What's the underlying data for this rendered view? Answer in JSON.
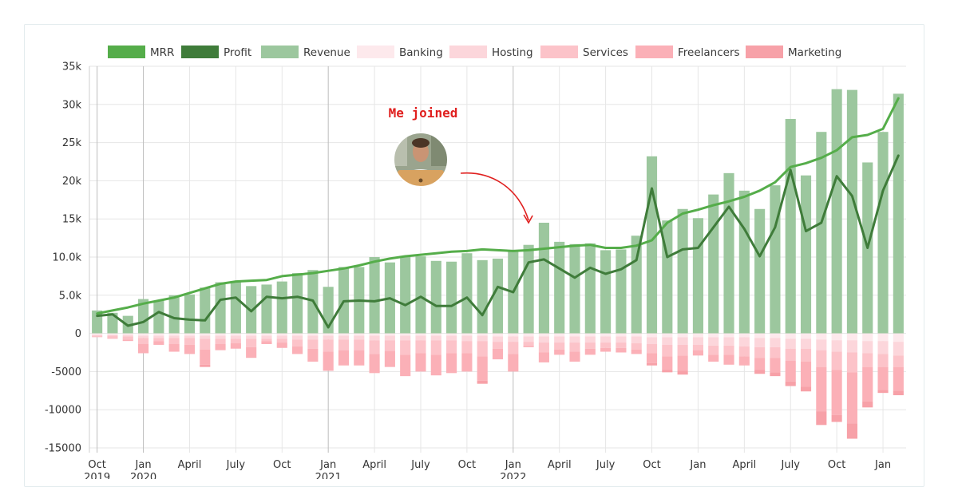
{
  "chart_data": {
    "type": "bar",
    "title": "",
    "xlabel": "",
    "ylabel": "",
    "ylim": [
      -15000,
      35000
    ],
    "y_ticks": [
      35000,
      30000,
      25000,
      20000,
      15000,
      10000,
      5000,
      0,
      -5000,
      -10000,
      -15000
    ],
    "y_tick_labels": [
      "35k",
      "30k",
      "25k",
      "20k",
      "15k",
      "10.0k",
      "5.0k",
      "0",
      "-5000",
      "-10000",
      "-15000"
    ],
    "grid": true,
    "legend_position": "top",
    "x": [
      "2019-10",
      "2019-11",
      "2019-12",
      "2020-01",
      "2020-02",
      "2020-03",
      "2020-04",
      "2020-05",
      "2020-06",
      "2020-07",
      "2020-08",
      "2020-09",
      "2020-10",
      "2020-11",
      "2020-12",
      "2021-01",
      "2021-02",
      "2021-03",
      "2021-04",
      "2021-05",
      "2021-06",
      "2021-07",
      "2021-08",
      "2021-09",
      "2021-10",
      "2021-11",
      "2021-12",
      "2022-01",
      "2022-02",
      "2022-03",
      "2022-04",
      "2022-05",
      "2022-06",
      "2022-07",
      "2022-08",
      "2022-09",
      "2022-10",
      "2022-11",
      "2022-12",
      "2023-01",
      "2023-02",
      "2023-03",
      "2023-04",
      "2023-05",
      "2023-06",
      "2023-07",
      "2023-08",
      "2023-09",
      "2023-10",
      "2023-11",
      "2023-12",
      "2024-01",
      "2024-02"
    ],
    "x_tick_labels": [
      {
        "index": 0,
        "month": "Oct",
        "year": "2019"
      },
      {
        "index": 3,
        "month": "Jan",
        "year": "2020"
      },
      {
        "index": 6,
        "month": "April",
        "year": ""
      },
      {
        "index": 9,
        "month": "July",
        "year": ""
      },
      {
        "index": 12,
        "month": "Oct",
        "year": ""
      },
      {
        "index": 15,
        "month": "Jan",
        "year": "2021"
      },
      {
        "index": 18,
        "month": "April",
        "year": ""
      },
      {
        "index": 21,
        "month": "July",
        "year": ""
      },
      {
        "index": 24,
        "month": "Oct",
        "year": ""
      },
      {
        "index": 27,
        "month": "Jan",
        "year": "2022"
      },
      {
        "index": 30,
        "month": "April",
        "year": ""
      },
      {
        "index": 33,
        "month": "July",
        "year": ""
      },
      {
        "index": 36,
        "month": "Oct",
        "year": ""
      },
      {
        "index": 39,
        "month": "Jan",
        "year": ""
      },
      {
        "index": 42,
        "month": "April",
        "year": ""
      },
      {
        "index": 45,
        "month": "July",
        "year": ""
      },
      {
        "index": 48,
        "month": "Oct",
        "year": ""
      },
      {
        "index": 51,
        "month": "Jan",
        "year": ""
      }
    ],
    "series": [
      {
        "name": "MRR",
        "kind": "line",
        "color": "#55ad4a",
        "values": [
          2600,
          3000,
          3400,
          3900,
          4300,
          4700,
          5300,
          5900,
          6500,
          6800,
          6900,
          7000,
          7500,
          7700,
          7900,
          8200,
          8500,
          8900,
          9400,
          9800,
          10100,
          10300,
          10500,
          10700,
          10800,
          11000,
          10900,
          10800,
          10900,
          11100,
          11300,
          11500,
          11600,
          11200,
          11200,
          11500,
          12200,
          14500,
          15700,
          16200,
          16800,
          17300,
          17900,
          18700,
          19800,
          21800,
          22300,
          23000,
          24000,
          25700,
          26000,
          26800,
          30800
        ]
      },
      {
        "name": "Profit",
        "kind": "line",
        "color": "#3f7c3a",
        "values": [
          2300,
          2500,
          1000,
          1500,
          2800,
          2000,
          1800,
          1700,
          4400,
          4700,
          2900,
          4800,
          4600,
          4800,
          4300,
          800,
          4200,
          4300,
          4200,
          4600,
          3700,
          4800,
          3600,
          3600,
          4700,
          2400,
          6100,
          5400,
          9300,
          9700,
          8500,
          7300,
          8600,
          7800,
          8400,
          9600,
          19000,
          10000,
          11000,
          11200,
          13900,
          16600,
          13700,
          10100,
          13900,
          21400,
          13400,
          14500,
          20600,
          18000,
          11200,
          18700,
          23300
        ]
      },
      {
        "name": "Revenue",
        "kind": "bar",
        "color": "#9cc79e",
        "values": [
          3000,
          2700,
          2300,
          4500,
          4300,
          5000,
          5100,
          6000,
          6700,
          6700,
          6200,
          6400,
          6800,
          7900,
          8300,
          6100,
          8700,
          8700,
          10000,
          9300,
          10100,
          10100,
          9500,
          9400,
          10500,
          9600,
          9800,
          10900,
          11600,
          14500,
          12000,
          11700,
          11800,
          10900,
          11000,
          12800,
          23200,
          14800,
          16300,
          15100,
          18200,
          21000,
          18700,
          16300,
          19400,
          28100,
          20700,
          26400,
          32000,
          31900,
          22400,
          26400,
          31400
        ]
      },
      {
        "name": "Banking",
        "kind": "bar",
        "color": "#fde9ec",
        "values": [
          -200,
          -200,
          -200,
          -300,
          -300,
          -300,
          -300,
          -300,
          -300,
          -300,
          -300,
          -300,
          -300,
          -300,
          -300,
          -300,
          -300,
          -300,
          -300,
          -300,
          -300,
          -300,
          -300,
          -300,
          -300,
          -300,
          -400,
          -400,
          -400,
          -400,
          -400,
          -400,
          -400,
          -400,
          -400,
          -400,
          -500,
          -500,
          -500,
          -500,
          -500,
          -500,
          -500,
          -600,
          -600,
          -700,
          -700,
          -800,
          -900,
          -900,
          -1000,
          -1000,
          -1100
        ]
      },
      {
        "name": "Hosting",
        "kind": "bar",
        "color": "#fcd6db",
        "values": [
          -100,
          -100,
          -200,
          -300,
          -300,
          -300,
          -300,
          -400,
          -400,
          -400,
          -400,
          -400,
          -400,
          -500,
          -500,
          -500,
          -500,
          -500,
          -600,
          -600,
          -600,
          -600,
          -600,
          -600,
          -700,
          -700,
          -700,
          -700,
          -700,
          -800,
          -800,
          -800,
          -800,
          -800,
          -800,
          -900,
          -900,
          -1000,
          -1000,
          -1000,
          -1100,
          -1100,
          -1200,
          -1200,
          -1200,
          -1300,
          -1300,
          -1400,
          -1500,
          -1600,
          -1600,
          -1700,
          -1800
        ]
      },
      {
        "name": "Services",
        "kind": "bar",
        "color": "#fcc3c9",
        "values": [
          -200,
          -300,
          -400,
          -800,
          -400,
          -800,
          -900,
          -1400,
          -700,
          -600,
          -1100,
          -300,
          -500,
          -900,
          -1200,
          -1600,
          -1400,
          -1400,
          -1800,
          -1400,
          -1900,
          -1700,
          -1900,
          -1700,
          -1600,
          -2000,
          -900,
          -1600,
          -500,
          -1300,
          -900,
          -1200,
          -800,
          -700,
          -700,
          -800,
          -1200,
          -1500,
          -1400,
          -700,
          -1200,
          -1200,
          -1300,
          -1400,
          -1400,
          -1600,
          -1700,
          -2200,
          -2400,
          -2600,
          -1800,
          -1700,
          -1500
        ]
      },
      {
        "name": "Freelancers",
        "kind": "bar",
        "color": "#fbb0b7",
        "values": [
          0,
          -100,
          -200,
          -1200,
          -500,
          -1000,
          -1200,
          -2000,
          -800,
          -700,
          -1300,
          -400,
          -700,
          -1000,
          -1700,
          -2500,
          -2000,
          -2000,
          -2500,
          -2100,
          -2800,
          -2400,
          -2700,
          -2600,
          -2400,
          -3200,
          -1400,
          -2300,
          -200,
          -1300,
          -700,
          -1300,
          -800,
          -500,
          -600,
          -600,
          -1300,
          -1800,
          -2000,
          -700,
          -900,
          -1300,
          -1200,
          -1600,
          -1900,
          -2700,
          -3300,
          -5800,
          -5900,
          -6700,
          -4500,
          -3000,
          -3100
        ]
      },
      {
        "name": "Marketing",
        "kind": "bar",
        "color": "#f7a1a8",
        "values": [
          0,
          0,
          0,
          0,
          0,
          0,
          0,
          -300,
          0,
          0,
          -100,
          0,
          0,
          0,
          0,
          0,
          0,
          0,
          0,
          0,
          0,
          0,
          0,
          0,
          0,
          -400,
          0,
          0,
          0,
          0,
          0,
          0,
          0,
          0,
          0,
          0,
          -300,
          -300,
          -500,
          0,
          0,
          0,
          0,
          -500,
          -500,
          -600,
          -600,
          -1800,
          -900,
          -2000,
          -800,
          -400,
          -600
        ]
      }
    ],
    "annotation": {
      "text": "Me joined",
      "target_index": 28,
      "photo_index": 21
    }
  }
}
